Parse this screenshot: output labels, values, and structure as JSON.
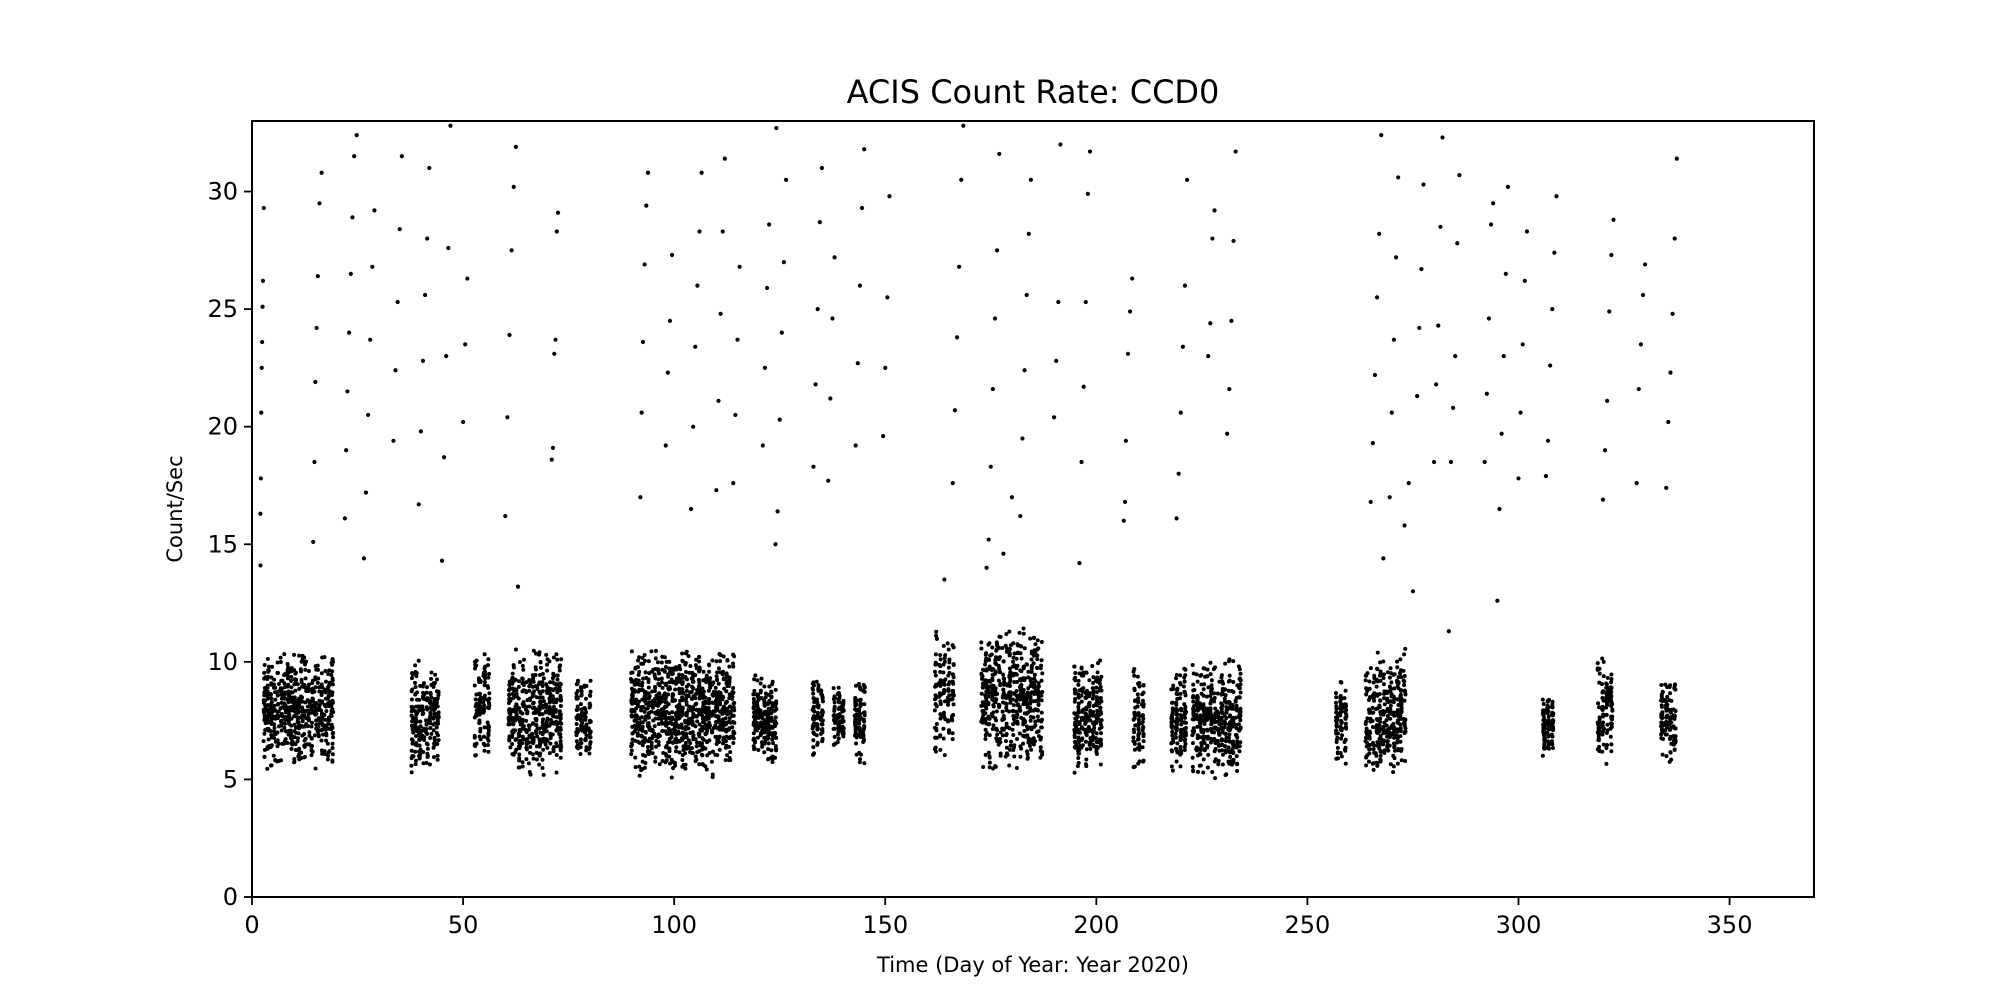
{
  "chart_data": {
    "type": "scatter",
    "title": "ACIS Count Rate: CCD0",
    "xlabel": "Time (Day of Year: Year 2020)",
    "ylabel": "Count/Sec",
    "xlim": [
      0,
      370
    ],
    "ylim": [
      0,
      33
    ],
    "xticks": [
      0,
      50,
      100,
      150,
      200,
      250,
      300,
      350
    ],
    "yticks": [
      0,
      5,
      10,
      15,
      20,
      25,
      30
    ],
    "grid": false,
    "marker_color": "#000000",
    "series": [
      {
        "points": [
          [
            2.0,
            14.1
          ],
          [
            2.0,
            16.3
          ],
          [
            2.1,
            17.8
          ],
          [
            2.2,
            20.6
          ],
          [
            2.3,
            22.5
          ],
          [
            2.4,
            23.6
          ],
          [
            2.5,
            25.1
          ],
          [
            2.6,
            26.2
          ],
          [
            2.8,
            29.3
          ],
          [
            14.5,
            15.1
          ],
          [
            14.8,
            18.5
          ],
          [
            15.0,
            21.9
          ],
          [
            15.3,
            24.2
          ],
          [
            15.6,
            26.4
          ],
          [
            16.0,
            29.5
          ],
          [
            16.5,
            30.8
          ],
          [
            22.0,
            16.1
          ],
          [
            22.3,
            19.0
          ],
          [
            22.6,
            21.5
          ],
          [
            23.0,
            24.0
          ],
          [
            23.4,
            26.5
          ],
          [
            23.8,
            28.9
          ],
          [
            24.2,
            31.5
          ],
          [
            24.8,
            32.4
          ],
          [
            26.5,
            14.4
          ],
          [
            27.0,
            17.2
          ],
          [
            27.5,
            20.5
          ],
          [
            28.0,
            23.7
          ],
          [
            28.5,
            26.8
          ],
          [
            29.0,
            29.2
          ],
          [
            33.5,
            19.4
          ],
          [
            34.0,
            22.4
          ],
          [
            34.5,
            25.3
          ],
          [
            35.0,
            28.4
          ],
          [
            35.5,
            31.5
          ],
          [
            39.5,
            16.7
          ],
          [
            40.0,
            19.8
          ],
          [
            40.5,
            22.8
          ],
          [
            41.0,
            25.6
          ],
          [
            41.5,
            28.0
          ],
          [
            42.0,
            31.0
          ],
          [
            45.0,
            14.3
          ],
          [
            45.5,
            18.7
          ],
          [
            46.0,
            23.0
          ],
          [
            46.5,
            27.6
          ],
          [
            47.0,
            32.8
          ],
          [
            50.0,
            20.2
          ],
          [
            50.5,
            23.5
          ],
          [
            51.0,
            26.3
          ],
          [
            60.0,
            16.2
          ],
          [
            60.5,
            20.4
          ],
          [
            61.0,
            23.9
          ],
          [
            61.5,
            27.5
          ],
          [
            62.0,
            30.2
          ],
          [
            62.5,
            31.9
          ],
          [
            63.0,
            13.2
          ],
          [
            71.0,
            18.6
          ],
          [
            71.3,
            19.1
          ],
          [
            71.6,
            23.1
          ],
          [
            71.9,
            23.7
          ],
          [
            72.2,
            28.3
          ],
          [
            72.5,
            29.1
          ],
          [
            92.0,
            17.0
          ],
          [
            92.3,
            20.6
          ],
          [
            92.6,
            23.6
          ],
          [
            93.0,
            26.9
          ],
          [
            93.4,
            29.4
          ],
          [
            93.8,
            30.8
          ],
          [
            98.0,
            19.2
          ],
          [
            98.5,
            22.3
          ],
          [
            99.0,
            24.5
          ],
          [
            99.5,
            27.3
          ],
          [
            104.0,
            16.5
          ],
          [
            104.5,
            20.0
          ],
          [
            105.0,
            23.4
          ],
          [
            105.5,
            26.0
          ],
          [
            106.0,
            28.3
          ],
          [
            106.5,
            30.8
          ],
          [
            110.0,
            17.3
          ],
          [
            110.5,
            21.1
          ],
          [
            111.0,
            24.8
          ],
          [
            111.5,
            28.3
          ],
          [
            112.0,
            31.4
          ],
          [
            114.0,
            17.6
          ],
          [
            114.5,
            20.5
          ],
          [
            115.0,
            23.7
          ],
          [
            115.5,
            26.8
          ],
          [
            121.0,
            19.2
          ],
          [
            121.5,
            22.5
          ],
          [
            122.0,
            25.9
          ],
          [
            122.5,
            28.6
          ],
          [
            124.0,
            15.0
          ],
          [
            124.5,
            16.4
          ],
          [
            125.0,
            20.3
          ],
          [
            125.5,
            24.0
          ],
          [
            126.0,
            27.0
          ],
          [
            126.5,
            30.5
          ],
          [
            124.2,
            32.7
          ],
          [
            133.0,
            18.3
          ],
          [
            133.5,
            21.8
          ],
          [
            134.0,
            25.0
          ],
          [
            134.5,
            28.7
          ],
          [
            135.0,
            31.0
          ],
          [
            136.5,
            17.7
          ],
          [
            137.0,
            21.2
          ],
          [
            137.5,
            24.6
          ],
          [
            138.0,
            27.2
          ],
          [
            143.0,
            19.2
          ],
          [
            143.5,
            22.7
          ],
          [
            144.0,
            26.0
          ],
          [
            144.5,
            29.3
          ],
          [
            145.0,
            31.8
          ],
          [
            149.5,
            19.6
          ],
          [
            150.0,
            22.5
          ],
          [
            150.5,
            25.5
          ],
          [
            151.0,
            29.8
          ],
          [
            164.0,
            13.5
          ],
          [
            166.0,
            17.6
          ],
          [
            166.5,
            20.7
          ],
          [
            167.0,
            23.8
          ],
          [
            167.5,
            26.8
          ],
          [
            168.0,
            30.5
          ],
          [
            168.5,
            32.8
          ],
          [
            174.0,
            14.0
          ],
          [
            174.5,
            15.2
          ],
          [
            175.0,
            18.3
          ],
          [
            175.5,
            21.6
          ],
          [
            176.0,
            24.6
          ],
          [
            176.5,
            27.5
          ],
          [
            177.0,
            31.6
          ],
          [
            178.0,
            14.6
          ],
          [
            180.0,
            17.0
          ],
          [
            182.0,
            16.2
          ],
          [
            182.5,
            19.5
          ],
          [
            183.0,
            22.4
          ],
          [
            183.5,
            25.6
          ],
          [
            184.0,
            28.2
          ],
          [
            184.5,
            30.5
          ],
          [
            190.0,
            20.4
          ],
          [
            190.5,
            22.8
          ],
          [
            191.0,
            25.3
          ],
          [
            191.5,
            32.0
          ],
          [
            196.0,
            14.2
          ],
          [
            196.5,
            18.5
          ],
          [
            197.0,
            21.7
          ],
          [
            197.5,
            25.3
          ],
          [
            198.0,
            29.9
          ],
          [
            198.5,
            31.7
          ],
          [
            206.5,
            16.0
          ],
          [
            206.8,
            16.8
          ],
          [
            207.0,
            19.4
          ],
          [
            207.5,
            23.1
          ],
          [
            208.0,
            24.9
          ],
          [
            208.5,
            26.3
          ],
          [
            219.0,
            16.1
          ],
          [
            219.5,
            18.0
          ],
          [
            220.0,
            20.6
          ],
          [
            220.5,
            23.4
          ],
          [
            221.0,
            26.0
          ],
          [
            221.5,
            30.5
          ],
          [
            226.5,
            23.0
          ],
          [
            227.0,
            24.4
          ],
          [
            227.5,
            28.0
          ],
          [
            228.0,
            29.2
          ],
          [
            231.0,
            19.7
          ],
          [
            231.5,
            21.6
          ],
          [
            232.0,
            24.5
          ],
          [
            232.5,
            27.9
          ],
          [
            233.0,
            31.7
          ],
          [
            265.0,
            16.8
          ],
          [
            265.5,
            19.3
          ],
          [
            266.0,
            22.2
          ],
          [
            266.5,
            25.5
          ],
          [
            267.0,
            28.2
          ],
          [
            267.5,
            32.4
          ],
          [
            268.0,
            14.4
          ],
          [
            269.5,
            17.0
          ],
          [
            270.0,
            20.6
          ],
          [
            270.5,
            23.7
          ],
          [
            271.0,
            27.2
          ],
          [
            271.5,
            30.6
          ],
          [
            273.0,
            15.8
          ],
          [
            274.0,
            17.6
          ],
          [
            275.0,
            13.0
          ],
          [
            276.0,
            21.3
          ],
          [
            276.5,
            24.2
          ],
          [
            277.0,
            26.7
          ],
          [
            277.5,
            30.3
          ],
          [
            280.0,
            18.5
          ],
          [
            280.5,
            21.8
          ],
          [
            281.0,
            24.3
          ],
          [
            281.5,
            28.5
          ],
          [
            282.0,
            32.3
          ],
          [
            283.5,
            11.3
          ],
          [
            284.0,
            18.5
          ],
          [
            284.5,
            20.8
          ],
          [
            285.0,
            23.0
          ],
          [
            285.5,
            27.8
          ],
          [
            286.0,
            30.7
          ],
          [
            292.0,
            18.5
          ],
          [
            292.5,
            21.4
          ],
          [
            293.0,
            24.6
          ],
          [
            293.5,
            28.6
          ],
          [
            294.0,
            29.5
          ],
          [
            295.0,
            12.6
          ],
          [
            295.5,
            16.5
          ],
          [
            296.0,
            19.7
          ],
          [
            296.5,
            23.0
          ],
          [
            297.0,
            26.5
          ],
          [
            297.5,
            30.2
          ],
          [
            300.0,
            17.8
          ],
          [
            300.5,
            20.6
          ],
          [
            301.0,
            23.5
          ],
          [
            301.5,
            26.2
          ],
          [
            302.0,
            28.3
          ],
          [
            306.5,
            17.9
          ],
          [
            307.0,
            19.4
          ],
          [
            307.5,
            22.6
          ],
          [
            308.0,
            25.0
          ],
          [
            308.5,
            27.4
          ],
          [
            309.0,
            29.8
          ],
          [
            320.0,
            16.9
          ],
          [
            320.5,
            19.0
          ],
          [
            321.0,
            21.1
          ],
          [
            321.5,
            24.9
          ],
          [
            322.0,
            27.3
          ],
          [
            322.5,
            28.8
          ],
          [
            328.0,
            17.6
          ],
          [
            328.5,
            21.6
          ],
          [
            329.0,
            23.5
          ],
          [
            329.5,
            25.6
          ],
          [
            330.0,
            26.9
          ],
          [
            335.0,
            17.4
          ],
          [
            335.5,
            20.2
          ],
          [
            336.0,
            22.3
          ],
          [
            336.5,
            24.8
          ],
          [
            337.0,
            28.0
          ],
          [
            337.5,
            31.4
          ]
        ]
      }
    ],
    "dense_bands": [
      {
        "x": [
          3,
          19
        ],
        "y": [
          5.3,
          10.5
        ]
      },
      {
        "x": [
          38,
          44
        ],
        "y": [
          5.2,
          10.1
        ]
      },
      {
        "x": [
          53,
          56
        ],
        "y": [
          5.6,
          10.7
        ]
      },
      {
        "x": [
          61,
          73
        ],
        "y": [
          5.1,
          10.6
        ]
      },
      {
        "x": [
          77,
          80
        ],
        "y": [
          5.7,
          9.5
        ]
      },
      {
        "x": [
          90,
          114
        ],
        "y": [
          5.0,
          10.8
        ]
      },
      {
        "x": [
          119,
          124
        ],
        "y": [
          5.6,
          9.6
        ]
      },
      {
        "x": [
          133,
          135
        ],
        "y": [
          5.9,
          9.8
        ]
      },
      {
        "x": [
          138,
          140
        ],
        "y": [
          6.2,
          9.1
        ]
      },
      {
        "x": [
          143,
          145
        ],
        "y": [
          5.6,
          9.4
        ]
      },
      {
        "x": [
          162,
          166
        ],
        "y": [
          5.8,
          11.4
        ]
      },
      {
        "x": [
          173,
          187
        ],
        "y": [
          5.3,
          11.6
        ]
      },
      {
        "x": [
          195,
          201
        ],
        "y": [
          5.1,
          10.4
        ]
      },
      {
        "x": [
          209,
          211
        ],
        "y": [
          5.1,
          10.2
        ]
      },
      {
        "x": [
          218,
          221
        ],
        "y": [
          5.3,
          10.0
        ]
      },
      {
        "x": [
          223,
          234
        ],
        "y": [
          5.0,
          10.3
        ]
      },
      {
        "x": [
          257,
          259
        ],
        "y": [
          5.4,
          9.5
        ]
      },
      {
        "x": [
          264,
          273
        ],
        "y": [
          5.0,
          10.6
        ]
      },
      {
        "x": [
          306,
          308
        ],
        "y": [
          5.9,
          8.6
        ]
      },
      {
        "x": [
          319,
          322
        ],
        "y": [
          5.4,
          10.4
        ]
      },
      {
        "x": [
          334,
          337
        ],
        "y": [
          5.7,
          9.5
        ]
      }
    ]
  }
}
